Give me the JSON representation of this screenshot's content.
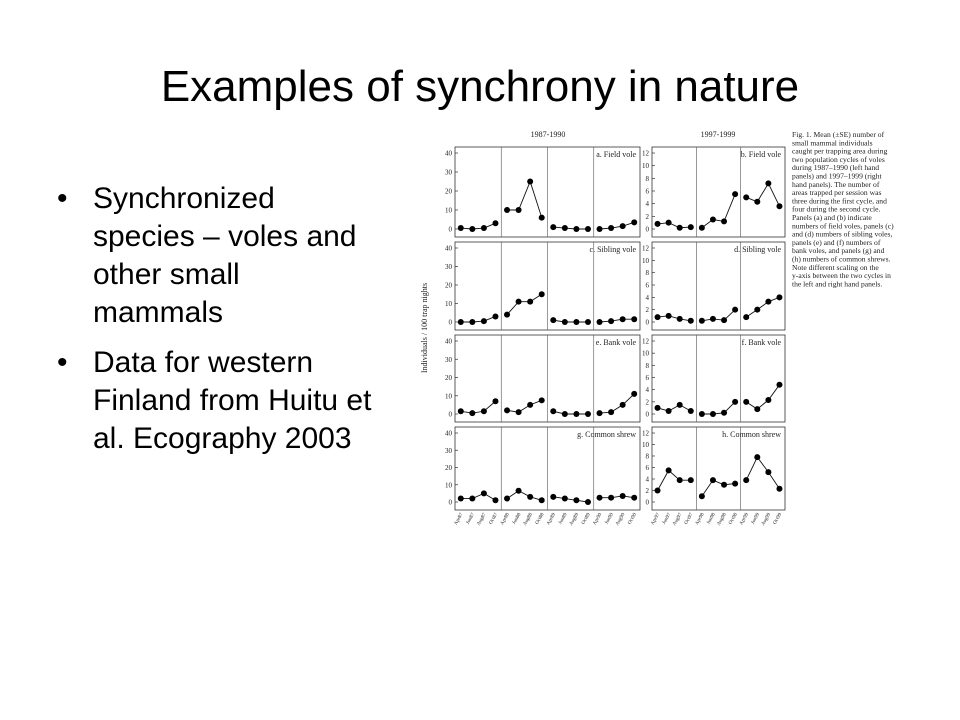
{
  "title": "Examples of synchrony in nature",
  "bullets": [
    "Synchronized species – voles and other small mammals",
    "Data for western Finland from Huitu et al. Ecography 2003"
  ],
  "figure": {
    "periods": [
      "1987-1990",
      "1997-1999"
    ],
    "y_label": "Individuals / 100 trap nights",
    "caption_lines": [
      "Fig. 1. Mean (±SE) number of",
      "small mammal individuals",
      "caught per trapping area during",
      "two population cycles of voles",
      "during 1987–1990 (left hand",
      "panels) and 1997–1999 (right",
      "hand panels). The number of",
      "areas trapped per session was",
      "three during the first cycle, and",
      "four during the second cycle.",
      "Panels (a) and (b) indicate",
      "numbers of field voles, panels (c)",
      "and (d) numbers of sibling voles,",
      "panels (e) and (f) numbers of",
      "bank voles, and panels (g) and",
      "(h) numbers of common shrews.",
      "Note different scaling on the",
      "y-axis between the two cycles in",
      "the left and right hand panels."
    ],
    "left_x_labels": [
      [
        "Apr87",
        "Jun87",
        "Aug87",
        "Oct87"
      ],
      [
        "Apr88",
        "Jun88",
        "Aug88",
        "Oct88"
      ],
      [
        "Apr89",
        "Jun89",
        "Aug89",
        "Oct89"
      ],
      [
        "Apr90",
        "Jun90",
        "Aug90",
        "Oct90"
      ]
    ],
    "right_x_labels": [
      [
        "Apr97",
        "Jun97",
        "Aug97",
        "Oct97"
      ],
      [
        "Apr98",
        "Jun98",
        "Aug98",
        "Oct98"
      ],
      [
        "Apr99",
        "Jun99",
        "Aug99",
        "Oct99"
      ]
    ],
    "panels": [
      {
        "label": "a. Field vole",
        "column": "left",
        "ylim": [
          0,
          40
        ],
        "yticks": [
          0,
          10,
          20,
          30,
          40
        ],
        "segments": [
          [
            0.5,
            0,
            0.5,
            3
          ],
          [
            10,
            10,
            25,
            6
          ],
          [
            1,
            0.5,
            0,
            0
          ],
          [
            0,
            0.5,
            1.5,
            3.5
          ]
        ]
      },
      {
        "label": "b. Field vole",
        "column": "right",
        "ylim": [
          0,
          12
        ],
        "yticks": [
          0,
          2,
          4,
          6,
          8,
          10,
          12
        ],
        "segments": [
          [
            0.8,
            1,
            0.2,
            0.3
          ],
          [
            0.2,
            1.5,
            1.2,
            5.5
          ],
          [
            5,
            4.3,
            7.2,
            3.6
          ]
        ]
      },
      {
        "label": "c. Sibling vole",
        "column": "left",
        "ylim": [
          0,
          40
        ],
        "yticks": [
          0,
          10,
          20,
          30,
          40
        ],
        "segments": [
          [
            0,
            0,
            0.5,
            3
          ],
          [
            4,
            11,
            11,
            15
          ],
          [
            1,
            0,
            0,
            0
          ],
          [
            0,
            0.5,
            1.5,
            1.5
          ]
        ]
      },
      {
        "label": "d. Sibling vole",
        "column": "right",
        "ylim": [
          0,
          12
        ],
        "yticks": [
          0,
          2,
          4,
          6,
          8,
          10,
          12
        ],
        "segments": [
          [
            0.8,
            1,
            0.5,
            0.2
          ],
          [
            0.2,
            0.5,
            0.3,
            2
          ],
          [
            0.8,
            2,
            3.3,
            4
          ]
        ]
      },
      {
        "label": "e. Bank vole",
        "column": "left",
        "ylim": [
          0,
          40
        ],
        "yticks": [
          0,
          10,
          20,
          30,
          40
        ],
        "segments": [
          [
            1.5,
            0.5,
            1.5,
            7
          ],
          [
            2,
            1,
            5,
            7.5
          ],
          [
            1.5,
            0,
            0,
            0
          ],
          [
            0.5,
            1,
            5,
            11
          ]
        ]
      },
      {
        "label": "f. Bank vole",
        "column": "right",
        "ylim": [
          0,
          12
        ],
        "yticks": [
          0,
          2,
          4,
          6,
          8,
          10,
          12
        ],
        "segments": [
          [
            1,
            0.5,
            1.5,
            0.5
          ],
          [
            0,
            0,
            0.2,
            2
          ],
          [
            2,
            0.8,
            2.3,
            4.8
          ]
        ]
      },
      {
        "label": "g. Common shrew",
        "column": "left",
        "ylim": [
          0,
          40
        ],
        "yticks": [
          0,
          10,
          20,
          30,
          40
        ],
        "segments": [
          [
            2,
            2,
            5,
            1
          ],
          [
            2,
            6.5,
            3,
            1
          ],
          [
            3,
            2,
            1,
            0
          ],
          [
            2.5,
            2.5,
            3.5,
            2.5
          ]
        ]
      },
      {
        "label": "h. Common shrew",
        "column": "right",
        "ylim": [
          0,
          12
        ],
        "yticks": [
          0,
          2,
          4,
          6,
          8,
          10,
          12
        ],
        "segments": [
          [
            2,
            5.5,
            3.8,
            3.8
          ],
          [
            1,
            3.8,
            3,
            3.2
          ],
          [
            3.8,
            7.8,
            5.2,
            2.3
          ]
        ]
      }
    ]
  }
}
